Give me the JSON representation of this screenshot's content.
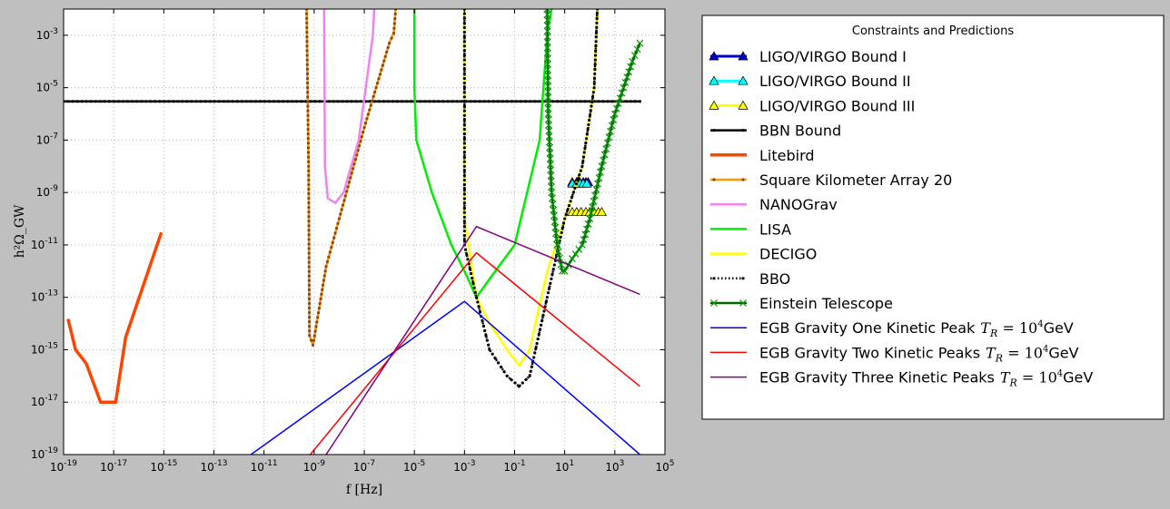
{
  "chart_data": {
    "type": "line",
    "title": "",
    "xlabel": "f [Hz]",
    "ylabel": "h²Ω_GW",
    "xscale": "log",
    "yscale": "log",
    "xlim": [
      1e-19,
      100000.0
    ],
    "ylim": [
      1e-19,
      0.01
    ],
    "grid": true,
    "legend": {
      "title": "Constraints and Predictions",
      "placement": "outside-right"
    },
    "x_ticks": [
      {
        "base": "10",
        "exp": "-19"
      },
      {
        "base": "10",
        "exp": "-17"
      },
      {
        "base": "10",
        "exp": "-15"
      },
      {
        "base": "10",
        "exp": "-13"
      },
      {
        "base": "10",
        "exp": "-11"
      },
      {
        "base": "10",
        "exp": "-9"
      },
      {
        "base": "10",
        "exp": "-7"
      },
      {
        "base": "10",
        "exp": "-5"
      },
      {
        "base": "10",
        "exp": "-3"
      },
      {
        "base": "10",
        "exp": "-1"
      },
      {
        "base": "10",
        "exp": "1"
      },
      {
        "base": "10",
        "exp": "3"
      },
      {
        "base": "10",
        "exp": "5"
      }
    ],
    "y_ticks": [
      {
        "base": "10",
        "exp": "-19"
      },
      {
        "base": "10",
        "exp": "-17"
      },
      {
        "base": "10",
        "exp": "-15"
      },
      {
        "base": "10",
        "exp": "-13"
      },
      {
        "base": "10",
        "exp": "-11"
      },
      {
        "base": "10",
        "exp": "-9"
      },
      {
        "base": "10",
        "exp": "-7"
      },
      {
        "base": "10",
        "exp": "-5"
      },
      {
        "base": "10",
        "exp": "-3"
      }
    ],
    "series": [
      {
        "name": "LIGO/VIRGO Bound I",
        "color": "#0000cc",
        "style": "solid",
        "width": 3,
        "marker": "triangle",
        "marker_fill": "#0000cc",
        "points": [
          [
            20,
            2.5e-09
          ],
          [
            30,
            2.5e-09
          ],
          [
            40,
            2.5e-09
          ],
          [
            55,
            2.5e-09
          ],
          [
            70,
            2.5e-09
          ],
          [
            86,
            2.5e-09
          ]
        ]
      },
      {
        "name": "LIGO/VIRGO Bound II",
        "color": "#00ffff",
        "style": "solid",
        "width": 3,
        "marker": "triangle",
        "marker_fill": "#00ffff",
        "points": [
          [
            20,
            2.2e-09
          ],
          [
            30,
            2.2e-09
          ],
          [
            41,
            2.2e-09
          ],
          [
            55,
            2.2e-09
          ],
          [
            76,
            2.2e-09
          ]
        ]
      },
      {
        "name": "LIGO/VIRGO Bound III",
        "color": "#ffff00",
        "style": "solid",
        "width": 3,
        "marker": "triangle",
        "marker_fill": "#ffff00",
        "points": [
          [
            20,
            1.8e-10
          ],
          [
            30,
            1.8e-10
          ],
          [
            45,
            1.8e-10
          ],
          [
            70,
            1.8e-10
          ],
          [
            100,
            1.8e-10
          ],
          [
            150,
            1.8e-10
          ],
          [
            220,
            1.8e-10
          ],
          [
            300,
            1.8e-10
          ]
        ]
      },
      {
        "name": "BBN Bound",
        "color": "#000000",
        "style": "solid",
        "width": 2.5,
        "marker": "point",
        "points": [
          [
            1e-19,
            3e-06
          ],
          [
            10000.0,
            3e-06
          ]
        ]
      },
      {
        "name": "Litebird",
        "color": "#ff4400",
        "style": "solid",
        "width": 3.5,
        "marker": "none",
        "points": [
          [
            1.5e-19,
            1.5e-14
          ],
          [
            3e-19,
            1e-15
          ],
          [
            8e-19,
            3e-16
          ],
          [
            3e-18,
            1e-17
          ],
          [
            1.2e-17,
            1e-17
          ],
          [
            3e-17,
            3e-15
          ],
          [
            8e-16,
            3e-11
          ]
        ]
      },
      {
        "name": "Square Kilometer Array 20",
        "color": "#ff9900",
        "style": "solid",
        "width": 2.5,
        "marker": "point",
        "marker_fill": "#8b4513",
        "points": [
          [
            5e-10,
            0.01
          ],
          [
            6e-10,
            1e-08
          ],
          [
            6.5e-10,
            3.5e-15
          ],
          [
            9e-10,
            1.5e-15
          ],
          [
            3e-09,
            1.5e-12
          ],
          [
            1e-08,
            1e-10
          ],
          [
            1e-07,
            3e-07
          ],
          [
            1e-06,
            0.0005
          ],
          [
            1.5e-06,
            0.0012
          ],
          [
            1.8e-06,
            0.01
          ]
        ]
      },
      {
        "name": "NANOGrav",
        "color": "#ee82ee",
        "style": "solid",
        "width": 2.5,
        "marker": "none",
        "points": [
          [
            2.5e-09,
            0.01
          ],
          [
            2.7e-09,
            1e-08
          ],
          [
            3.5e-09,
            6e-10
          ],
          [
            7e-09,
            4e-10
          ],
          [
            1.5e-08,
            1e-09
          ],
          [
            6e-08,
            1e-07
          ],
          [
            2.2e-07,
            0.001
          ],
          [
            2.5e-07,
            0.01
          ]
        ]
      },
      {
        "name": "LISA",
        "color": "#00ee00",
        "style": "solid",
        "width": 2.5,
        "marker": "none",
        "points": [
          [
            1e-05,
            0.01
          ],
          [
            1e-05,
            1e-05
          ],
          [
            1.2e-05,
            1e-07
          ],
          [
            5e-05,
            1e-09
          ],
          [
            0.0003,
            1e-11
          ],
          [
            0.001,
            1e-12
          ],
          [
            0.003,
            1e-13
          ],
          [
            0.01,
            5e-13
          ],
          [
            0.1,
            1e-11
          ],
          [
            1,
            1e-07
          ],
          [
            2,
            0.001
          ],
          [
            3,
            0.01
          ]
        ]
      },
      {
        "name": "DECIGO",
        "color": "#ffff00",
        "style": "solid",
        "width": 2.5,
        "marker": "none",
        "points": [
          [
            0.001,
            0.01
          ],
          [
            0.001,
            1e-10
          ],
          [
            0.003,
            1e-13
          ],
          [
            0.01,
            1e-14
          ],
          [
            0.05,
            1e-15
          ],
          [
            0.15,
            2.5e-16
          ],
          [
            0.4,
            1e-15
          ],
          [
            2,
            1e-12
          ],
          [
            10,
            1e-10
          ],
          [
            50,
            1e-08
          ],
          [
            150,
            1e-05
          ],
          [
            200,
            0.01
          ]
        ]
      },
      {
        "name": "BBO",
        "color": "#000000",
        "style": "dotted",
        "width": 2.5,
        "marker": "point",
        "points": [
          [
            0.001,
            0.01
          ],
          [
            0.001,
            1e-11
          ],
          [
            0.003,
            1e-13
          ],
          [
            0.01,
            1e-15
          ],
          [
            0.05,
            1e-16
          ],
          [
            0.15,
            4e-17
          ],
          [
            0.4,
            1e-16
          ],
          [
            2,
            1e-13
          ],
          [
            10,
            1e-10
          ],
          [
            50,
            1e-08
          ],
          [
            150,
            1e-05
          ],
          [
            200,
            0.01
          ]
        ]
      },
      {
        "name": "Einstein Telescope",
        "color": "#006600",
        "style": "solid",
        "width": 2.5,
        "marker": "x",
        "marker_fill": "#009900",
        "points": [
          [
            2,
            0.01
          ],
          [
            2.2,
            1e-06
          ],
          [
            3,
            1e-09
          ],
          [
            5,
            1e-11
          ],
          [
            8,
            1e-12
          ],
          [
            10,
            1e-12
          ],
          [
            20,
            3e-12
          ],
          [
            50,
            1e-11
          ],
          [
            100,
            1e-10
          ],
          [
            300,
            1e-08
          ],
          [
            1000,
            1e-06
          ],
          [
            5000,
            0.0001
          ],
          [
            10000.0,
            0.0005
          ]
        ]
      },
      {
        "name": "EGB Gravity One Kinetic Peak",
        "name_suffix": "T_R = 10⁴GeV",
        "color": "#0000ff",
        "style": "solid",
        "width": 1.5,
        "marker": "none",
        "points": [
          [
            3e-12,
            1e-19
          ],
          [
            0.001,
            7e-14
          ],
          [
            10000.0,
            1e-19
          ]
        ]
      },
      {
        "name": "EGB Gravity Two Kinetic Peaks",
        "name_suffix": "T_R = 10⁴GeV",
        "color": "#ff0000",
        "style": "solid",
        "width": 1.5,
        "marker": "none",
        "points": [
          [
            7e-10,
            1e-19
          ],
          [
            0.003,
            5e-12
          ],
          [
            10000.0,
            4e-17
          ]
        ]
      },
      {
        "name": "EGB Gravity Three Kinetic Peaks",
        "name_suffix": "T_R = 10⁴GeV",
        "color": "#800080",
        "style": "solid",
        "width": 1.5,
        "marker": "none",
        "points": [
          [
            3e-09,
            1e-19
          ],
          [
            0.003,
            5e-11
          ],
          [
            10000.0,
            1.3e-13
          ]
        ]
      }
    ]
  }
}
